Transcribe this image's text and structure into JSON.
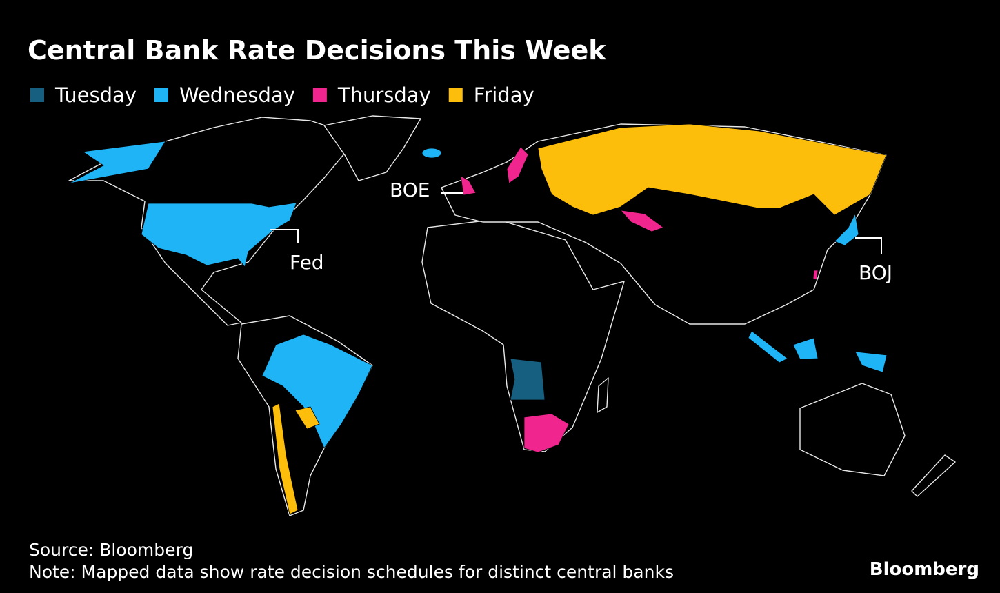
{
  "title": "Central Bank Rate Decisions This Week",
  "legend": [
    {
      "label": "Tuesday",
      "color": "#165f80"
    },
    {
      "label": "Wednesday",
      "color": "#1fb4f5"
    },
    {
      "label": "Thursday",
      "color": "#f0258e"
    },
    {
      "label": "Friday",
      "color": "#fdbe0b"
    }
  ],
  "annotations": [
    "BOE",
    "Fed",
    "BOJ"
  ],
  "source": "Source: Bloomberg",
  "note": "Note: Mapped data show rate decision schedules for distinct central banks",
  "logo": "Bloomberg"
}
